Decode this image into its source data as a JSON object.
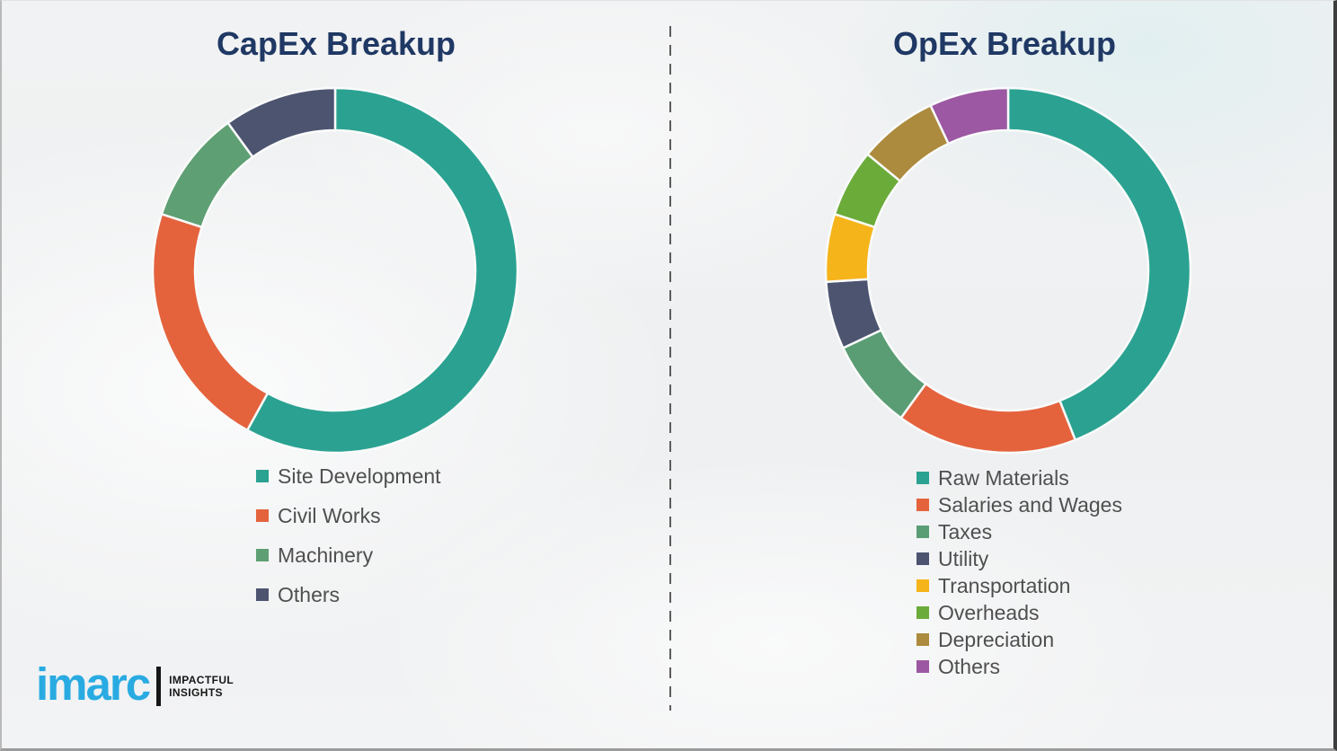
{
  "page": {
    "background_color": "#f0f1f2",
    "divider_style": "vertical-dashed-line",
    "title_color": "#1F3864",
    "legend_text_color": "#4f4f4f"
  },
  "chart_data": [
    {
      "type": "pie",
      "subtype": "donut",
      "title": "CapEx Breakup",
      "categories": [
        "Site Development",
        "Civil Works",
        "Machinery",
        "Others"
      ],
      "values": [
        58,
        22,
        10,
        10
      ],
      "values_note": "percent share estimated from arc angles; no numeric labels shown in image",
      "colors": [
        "#2BA291",
        "#E4633D",
        "#5E9F73",
        "#4C5470"
      ],
      "start_angle_deg": 0,
      "direction": "clockwise",
      "inner_radius_ratio": 0.77,
      "legend_position": "below-chart-left"
    },
    {
      "type": "pie",
      "subtype": "donut",
      "title": "OpEx Breakup",
      "categories": [
        "Raw Materials",
        "Salaries and Wages",
        "Taxes",
        "Utility",
        "Transportation",
        "Overheads",
        "Depreciation",
        "Others"
      ],
      "values": [
        44,
        16,
        8,
        6,
        6,
        6,
        7,
        7
      ],
      "values_note": "percent share estimated from arc angles; no numeric labels shown in image",
      "colors": [
        "#2BA291",
        "#E4633D",
        "#5A9D75",
        "#4C5470",
        "#F6B41B",
        "#6BAB3A",
        "#AC8B3E",
        "#9C58A2"
      ],
      "start_angle_deg": 0,
      "direction": "clockwise",
      "inner_radius_ratio": 0.77,
      "legend_position": "below-chart-left"
    }
  ],
  "logo": {
    "brand": "imarc",
    "brand_color": "#29ABE2",
    "tagline_line1": "IMPACTFUL",
    "tagline_line2": "INSIGHTS"
  }
}
